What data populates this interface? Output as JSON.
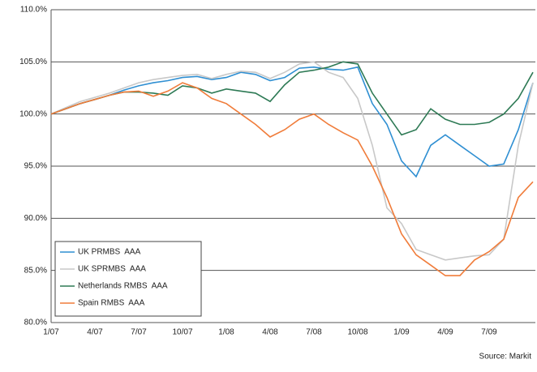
{
  "chart_data": {
    "type": "line",
    "categories": [
      "1/07",
      null,
      null,
      "4/07",
      null,
      null,
      "7/07",
      null,
      null,
      "10/07",
      null,
      null,
      "1/08",
      null,
      null,
      "4/08",
      null,
      null,
      "7/08",
      null,
      null,
      "10/08",
      null,
      null,
      "1/09",
      null,
      null,
      "4/09",
      null,
      null,
      "7/09",
      null,
      null,
      null
    ],
    "series": [
      {
        "name": "UK PRMBS  AAA",
        "color": "#2f8fd2",
        "values": [
          100,
          100.5,
          101,
          101.4,
          101.8,
          102.3,
          102.7,
          103,
          103.2,
          103.5,
          103.6,
          103.3,
          103.5,
          104,
          103.8,
          103.2,
          103.5,
          104.4,
          104.5,
          104.3,
          104.2,
          104.5,
          101,
          99,
          95.5,
          94,
          97,
          98,
          97,
          96,
          95,
          95.2,
          98.5,
          103
        ]
      },
      {
        "name": "UK SPRMBS  AAA",
        "color": "#c8c8c8",
        "values": [
          100,
          100.6,
          101.2,
          101.6,
          102,
          102.5,
          103,
          103.3,
          103.5,
          103.7,
          103.8,
          103.4,
          103.8,
          104.1,
          104,
          103.4,
          104,
          104.8,
          105,
          104,
          103.5,
          101.5,
          97,
          91,
          89.5,
          87,
          86.5,
          86,
          86.2,
          86.4,
          86.5,
          88,
          97,
          103
        ]
      },
      {
        "name": "Netherlands RMBS  AAA",
        "color": "#2e7a55",
        "values": [
          100,
          100.5,
          101,
          101.4,
          101.8,
          102.1,
          102.1,
          102,
          101.8,
          102.7,
          102.5,
          102,
          102.4,
          102.2,
          102,
          101.2,
          102.8,
          104,
          104.2,
          104.5,
          105,
          104.8,
          102,
          100,
          98,
          98.5,
          100.5,
          99.5,
          99,
          99,
          99.2,
          100,
          101.5,
          104
        ]
      },
      {
        "name": "Spain RMBS  AAA",
        "color": "#f07c3a",
        "values": [
          100,
          100.5,
          101,
          101.4,
          101.8,
          102.1,
          102.2,
          101.7,
          102.2,
          103,
          102.5,
          101.5,
          101,
          100,
          99,
          97.8,
          98.5,
          99.5,
          100,
          99,
          98.2,
          97.5,
          95,
          92,
          88.5,
          86.5,
          85.5,
          84.5,
          84.5,
          86,
          86.8,
          88,
          92,
          93.5
        ]
      }
    ],
    "ylim": [
      80,
      110
    ],
    "yticks": [
      {
        "value": 80,
        "label": "80.0%"
      },
      {
        "value": 85,
        "label": "85.0%"
      },
      {
        "value": 90,
        "label": "90.0%"
      },
      {
        "value": 95,
        "label": "95.0%"
      },
      {
        "value": 100,
        "label": "100.0%"
      },
      {
        "value": 105,
        "label": "105.0%"
      },
      {
        "value": 110,
        "label": "110.0%"
      }
    ],
    "grid": true,
    "legend": "lower left",
    "source": "Source: Markit"
  }
}
